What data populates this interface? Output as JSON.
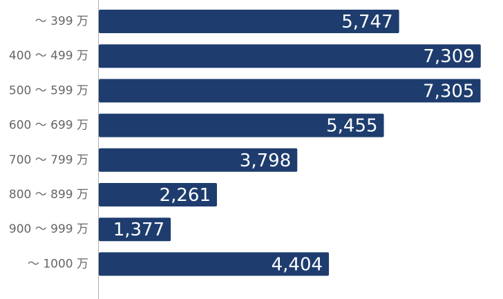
{
  "chart_data": {
    "type": "bar",
    "orientation": "horizontal",
    "categories": [
      "～ 399 万",
      "400 ～ 499 万",
      "500 ～ 599 万",
      "600 ～ 699 万",
      "700 ～ 799 万",
      "800 ～ 899 万",
      "900 ～ 999 万",
      "～ 1000 万"
    ],
    "values": [
      5747,
      7309,
      7305,
      5455,
      3798,
      2261,
      1377,
      4404
    ],
    "value_labels": [
      "5,747",
      "7,309",
      "7,305",
      "5,455",
      "3,798",
      "2,261",
      "1,377",
      "4,404"
    ],
    "title": "",
    "xlabel": "",
    "ylabel": "",
    "xlim": [
      0,
      7735
    ],
    "grid": false,
    "legend": "none"
  },
  "colors": {
    "bar": "#1e3d6e",
    "axis": "#b0b0b0",
    "category_text": "#666666",
    "value_text": "#ffffff"
  }
}
